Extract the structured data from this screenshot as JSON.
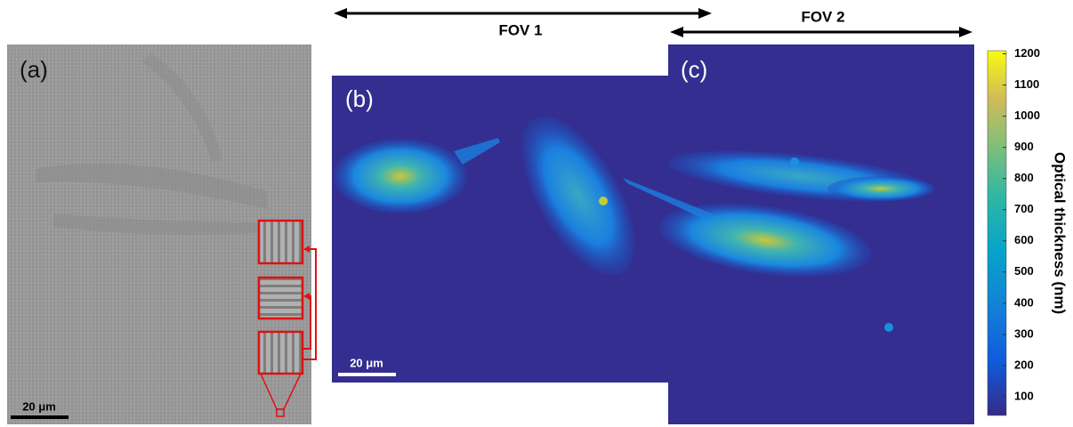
{
  "panels": [
    {
      "label": "(a)",
      "scale_bar": "20 μm"
    },
    {
      "label": "(b)",
      "scale_bar": "20 μm"
    },
    {
      "label": "(c)"
    }
  ],
  "fov": [
    "FOV 1",
    "FOV 2"
  ],
  "colorbar": {
    "title": "Optical thickness (nm)",
    "range": [
      40,
      1210
    ],
    "ticks": [
      100,
      200,
      300,
      400,
      500,
      600,
      700,
      800,
      900,
      1000,
      1100,
      1200
    ]
  }
}
